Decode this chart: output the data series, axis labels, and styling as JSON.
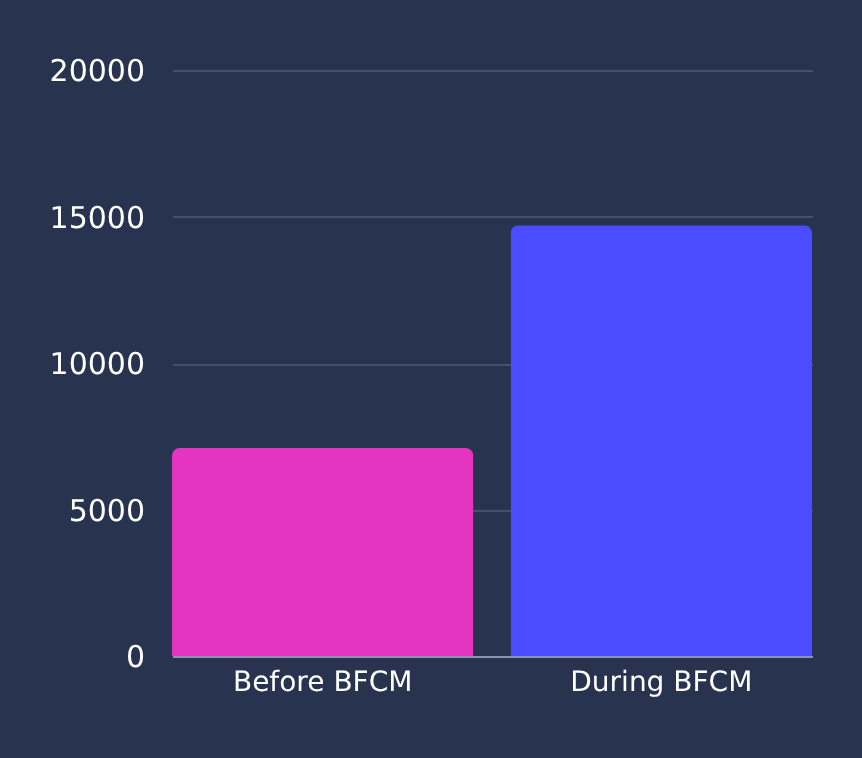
{
  "chart_data": {
    "type": "bar",
    "categories": [
      "Before BFCM",
      "During BFCM"
    ],
    "values": [
      7100,
      14700
    ],
    "colors": [
      "#e535c0",
      "#4b4bff"
    ],
    "ylim": [
      0,
      20000
    ],
    "yticks": [
      0,
      5000,
      10000,
      15000,
      20000
    ],
    "grid": "y"
  }
}
